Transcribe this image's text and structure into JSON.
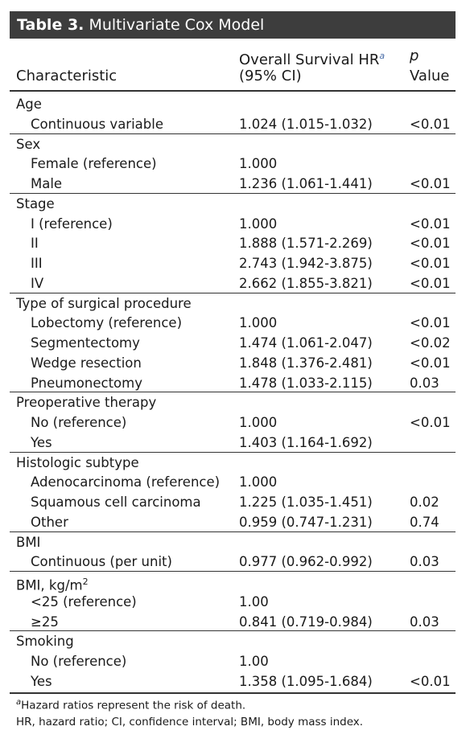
{
  "title": {
    "label": "Table 3.",
    "text": "Multivariate Cox Model"
  },
  "header": {
    "characteristic": "Characteristic",
    "hr_line1": "Overall Survival HR",
    "hr_sup": "a",
    "hr_line2": "(95% CI)",
    "p_line1": "p",
    "p_line2": "Value"
  },
  "rows": [
    {
      "text": "Age",
      "hr": "",
      "p": ""
    },
    {
      "text": "Continuous variable",
      "hr": "1.024 (1.015-1.032)",
      "p": "<0.01"
    },
    {
      "text": "Sex",
      "hr": "",
      "p": ""
    },
    {
      "text": "Female (reference)",
      "hr": "1.000",
      "p": ""
    },
    {
      "text": "Male",
      "hr": "1.236 (1.061-1.441)",
      "p": "<0.01"
    },
    {
      "text": "Stage",
      "hr": "",
      "p": ""
    },
    {
      "text": "I (reference)",
      "hr": "1.000",
      "p": "<0.01"
    },
    {
      "text": "II",
      "hr": "1.888 (1.571-2.269)",
      "p": "<0.01"
    },
    {
      "text": "III",
      "hr": "2.743 (1.942-3.875)",
      "p": "<0.01"
    },
    {
      "text": "IV",
      "hr": "2.662 (1.855-3.821)",
      "p": "<0.01"
    },
    {
      "text": "Type of surgical procedure",
      "hr": "",
      "p": ""
    },
    {
      "text": "Lobectomy (reference)",
      "hr": "1.000",
      "p": "<0.01"
    },
    {
      "text": "Segmentectomy",
      "hr": "1.474 (1.061-2.047)",
      "p": "<0.02"
    },
    {
      "text": "Wedge resection",
      "hr": "1.848 (1.376-2.481)",
      "p": "<0.01"
    },
    {
      "text": "Pneumonectomy",
      "hr": "1.478 (1.033-2.115)",
      "p": "0.03"
    },
    {
      "text": "Preoperative therapy",
      "hr": "",
      "p": ""
    },
    {
      "text": "No (reference)",
      "hr": "1.000",
      "p": "<0.01"
    },
    {
      "text": "Yes",
      "hr": "1.403 (1.164-1.692)",
      "p": ""
    },
    {
      "text": "Histologic subtype",
      "hr": "",
      "p": ""
    },
    {
      "text": "Adenocarcinoma (reference)",
      "hr": "1.000",
      "p": ""
    },
    {
      "text": "Squamous cell carcinoma",
      "hr": "1.225 (1.035-1.451)",
      "p": "0.02"
    },
    {
      "text": "Other",
      "hr": "0.959 (0.747-1.231)",
      "p": "0.74"
    },
    {
      "text": "BMI",
      "hr": "",
      "p": ""
    },
    {
      "text": "Continuous (per unit)",
      "hr": "0.977 (0.962-0.992)",
      "p": "0.03"
    },
    {
      "text": "BMI, kg/m",
      "sup": "2",
      "hr": "",
      "p": ""
    },
    {
      "text": "<25 (reference)",
      "hr": "1.00",
      "p": ""
    },
    {
      "text": "≥25",
      "hr": "0.841 (0.719-0.984)",
      "p": "0.03"
    },
    {
      "text": "Smoking",
      "hr": "",
      "p": ""
    },
    {
      "text": "No (reference)",
      "hr": "1.00",
      "p": ""
    },
    {
      "text": "Yes",
      "hr": "1.358 (1.095-1.684)",
      "p": "<0.01"
    }
  ],
  "footnotes": {
    "a_marker": "a",
    "a_text": "Hazard ratios represent the risk of death.",
    "abbrev": "HR, hazard ratio; CI, confidence interval; BMI, body mass index."
  }
}
